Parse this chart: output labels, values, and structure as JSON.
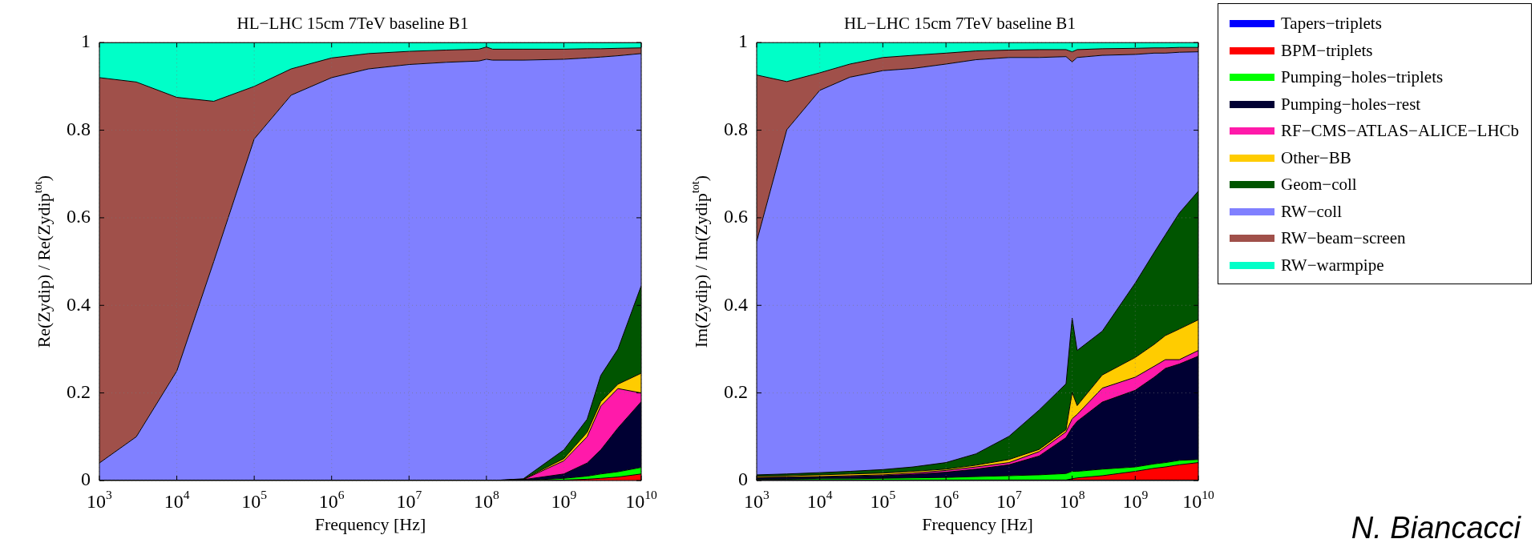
{
  "chart_data": [
    {
      "type": "area",
      "stacked": true,
      "title": "HL−LHC 15cm 7TeV baseline B1",
      "xlabel": "Frequency [Hz]",
      "ylabel": "Re(Zydip) / Re(Zydip$^{tot}$)",
      "log": "x",
      "grid": true,
      "legend": false,
      "xlim": [
        1000,
        10000000000
      ],
      "ylim": [
        0,
        1
      ],
      "xticks": [
        {
          "value": 1000,
          "label": "10$^{3}$"
        },
        {
          "value": 10000,
          "label": "10$^{4}$"
        },
        {
          "value": 100000,
          "label": "10$^{5}$"
        },
        {
          "value": 1000000,
          "label": "10$^{6}$"
        },
        {
          "value": 10000000,
          "label": "10$^{7}$"
        },
        {
          "value": 100000000,
          "label": "10$^{8}$"
        },
        {
          "value": 1000000000,
          "label": "10$^{9}$"
        },
        {
          "value": 10000000000,
          "label": "10$^{10}$"
        }
      ],
      "yticks": [
        0,
        0.2,
        0.4,
        0.6,
        0.8,
        1
      ],
      "x": [
        1000,
        3000,
        10000,
        30000,
        100000,
        300000,
        1000000,
        3000000,
        10000000,
        30000000,
        80000000,
        100000000,
        120000000,
        300000000,
        1000000000,
        2000000000,
        3000000000,
        5000000000,
        10000000000
      ],
      "series": [
        {
          "color": "#ff0000",
          "values": [
            0,
            0,
            0,
            0,
            0,
            0,
            0,
            0,
            0,
            0,
            0,
            0,
            0,
            0,
            0.001,
            0.003,
            0.005,
            0.008,
            0.015
          ]
        },
        {
          "color": "#00ff00",
          "values": [
            0,
            0,
            0,
            0,
            0,
            0,
            0,
            0,
            0,
            0,
            0,
            0,
            0,
            0,
            0.004,
            0.007,
            0.01,
            0.012,
            0.015
          ]
        },
        {
          "color": "#000033",
          "values": [
            0,
            0,
            0,
            0,
            0,
            0,
            0,
            0,
            0,
            0,
            0,
            0,
            0,
            0.002,
            0.01,
            0.03,
            0.055,
            0.1,
            0.15
          ]
        },
        {
          "color": "#ff1aaa",
          "values": [
            0,
            0,
            0,
            0,
            0,
            0,
            0,
            0,
            0,
            0,
            0,
            0,
            0,
            0,
            0.03,
            0.06,
            0.1,
            0.09,
            0.02
          ]
        },
        {
          "color": "#ffcc00",
          "values": [
            0,
            0,
            0,
            0,
            0,
            0,
            0,
            0,
            0,
            0,
            0,
            0,
            0,
            0.001,
            0.005,
            0.01,
            0.01,
            0.01,
            0.045
          ]
        },
        {
          "color": "#005500",
          "values": [
            0,
            0,
            0,
            0,
            0,
            0,
            0,
            0,
            0,
            0,
            0,
            0,
            0,
            0.001,
            0.02,
            0.03,
            0.06,
            0.08,
            0.2
          ]
        },
        {
          "color": "#8080ff",
          "values": [
            0.04,
            0.1,
            0.25,
            0.5,
            0.78,
            0.88,
            0.92,
            0.94,
            0.95,
            0.955,
            0.958,
            0.962,
            0.96,
            0.956,
            0.892,
            0.825,
            0.727,
            0.67,
            0.53
          ]
        },
        {
          "color": "#a0504a",
          "values": [
            0.88,
            0.81,
            0.625,
            0.366,
            0.12,
            0.06,
            0.045,
            0.035,
            0.03,
            0.028,
            0.027,
            0.028,
            0.025,
            0.025,
            0.023,
            0.021,
            0.019,
            0.017,
            0.013
          ]
        },
        {
          "color": "#00ffc8",
          "values": [
            0.08,
            0.09,
            0.125,
            0.134,
            0.1,
            0.06,
            0.035,
            0.025,
            0.02,
            0.017,
            0.015,
            0.01,
            0.015,
            0.015,
            0.015,
            0.014,
            0.014,
            0.013,
            0.012
          ]
        }
      ]
    },
    {
      "type": "area",
      "stacked": true,
      "title": "HL−LHC 15cm 7TeV baseline B1",
      "xlabel": "Frequency [Hz]",
      "ylabel": "Im(Zydip) / Im(Zydip$^{tot}$)",
      "log": "x",
      "grid": true,
      "legend": "right",
      "annotations": [
        "N. Biancacci"
      ],
      "xlim": [
        1000,
        10000000000
      ],
      "ylim": [
        0,
        1
      ],
      "xticks": [
        {
          "value": 1000,
          "label": "10$^{3}$"
        },
        {
          "value": 10000,
          "label": "10$^{4}$"
        },
        {
          "value": 100000,
          "label": "10$^{5}$"
        },
        {
          "value": 1000000,
          "label": "10$^{6}$"
        },
        {
          "value": 10000000,
          "label": "10$^{7}$"
        },
        {
          "value": 100000000,
          "label": "10$^{8}$"
        },
        {
          "value": 1000000000,
          "label": "10$^{9}$"
        },
        {
          "value": 10000000000,
          "label": "10$^{10}$"
        }
      ],
      "yticks": [
        0,
        0.2,
        0.4,
        0.6,
        0.8,
        1
      ],
      "x": [
        1000,
        3000,
        10000,
        30000,
        100000,
        300000,
        1000000,
        3000000,
        10000000,
        30000000,
        80000000,
        100000000,
        120000000,
        300000000,
        1000000000,
        2000000000,
        3000000000,
        5000000000,
        10000000000
      ],
      "series": [
        {
          "name": "Tapers−triplets",
          "color": "#0000ff",
          "values": [
            0.001,
            0.001,
            0.001,
            0.001,
            0.001,
            0.001,
            0.001,
            0.001,
            0.001,
            0.001,
            0.001,
            0.001,
            0.001,
            0.001,
            0.001,
            0.001,
            0.001,
            0.001,
            0.001
          ]
        },
        {
          "name": "BPM−triplets",
          "color": "#ff0000",
          "values": [
            0,
            0,
            0,
            0,
            0,
            0,
            0,
            0,
            0,
            0,
            0,
            0.003,
            0.005,
            0.01,
            0.02,
            0.027,
            0.03,
            0.035,
            0.04
          ]
        },
        {
          "name": "Pumping−holes−triplets",
          "color": "#00ff00",
          "values": [
            0.002,
            0.002,
            0.003,
            0.003,
            0.004,
            0.005,
            0.006,
            0.008,
            0.01,
            0.012,
            0.015,
            0.017,
            0.015,
            0.015,
            0.01,
            0.01,
            0.01,
            0.01,
            0.007
          ]
        },
        {
          "name": "Pumping−holes−rest",
          "color": "#000033",
          "values": [
            0.003,
            0.004,
            0.004,
            0.005,
            0.006,
            0.008,
            0.012,
            0.017,
            0.025,
            0.043,
            0.082,
            0.1,
            0.114,
            0.153,
            0.175,
            0.198,
            0.215,
            0.22,
            0.236
          ]
        },
        {
          "name": "RF−CMS−ATLAS−ALICE−LHCb",
          "color": "#ff1aaa",
          "values": [
            0.001,
            0.001,
            0.001,
            0.002,
            0.002,
            0.003,
            0.004,
            0.005,
            0.005,
            0.01,
            0.013,
            0.02,
            0.016,
            0.032,
            0.03,
            0.025,
            0.02,
            0.01,
            0.013
          ]
        },
        {
          "name": "Other−BB",
          "color": "#ffcc00",
          "values": [
            0.003,
            0.003,
            0.004,
            0.004,
            0.004,
            0.004,
            0.003,
            0.004,
            0.007,
            0.005,
            0.005,
            0.06,
            0.02,
            0.03,
            0.045,
            0.05,
            0.055,
            0.07,
            0.07
          ]
        },
        {
          "name": "Geom−coll",
          "color": "#005500",
          "values": [
            0.003,
            0.004,
            0.005,
            0.006,
            0.008,
            0.01,
            0.015,
            0.026,
            0.053,
            0.09,
            0.105,
            0.17,
            0.126,
            0.1,
            0.17,
            0.21,
            0.23,
            0.265,
            0.294
          ]
        },
        {
          "name": "RW−coll",
          "color": "#8080ff",
          "values": [
            0.533,
            0.786,
            0.873,
            0.9,
            0.911,
            0.91,
            0.91,
            0.9,
            0.865,
            0.805,
            0.747,
            0.585,
            0.669,
            0.63,
            0.522,
            0.455,
            0.415,
            0.367,
            0.318
          ]
        },
        {
          "name": "RW−beam−screen",
          "color": "#a0504a",
          "values": [
            0.38,
            0.11,
            0.04,
            0.03,
            0.03,
            0.03,
            0.025,
            0.02,
            0.017,
            0.018,
            0.016,
            0.023,
            0.018,
            0.015,
            0.014,
            0.012,
            0.012,
            0.011,
            0.01
          ]
        },
        {
          "name": "RW−warmpipe",
          "color": "#00ffc8",
          "values": [
            0.075,
            0.09,
            0.07,
            0.05,
            0.035,
            0.03,
            0.025,
            0.02,
            0.018,
            0.017,
            0.017,
            0.022,
            0.017,
            0.015,
            0.014,
            0.013,
            0.013,
            0.012,
            0.012
          ]
        }
      ]
    }
  ]
}
